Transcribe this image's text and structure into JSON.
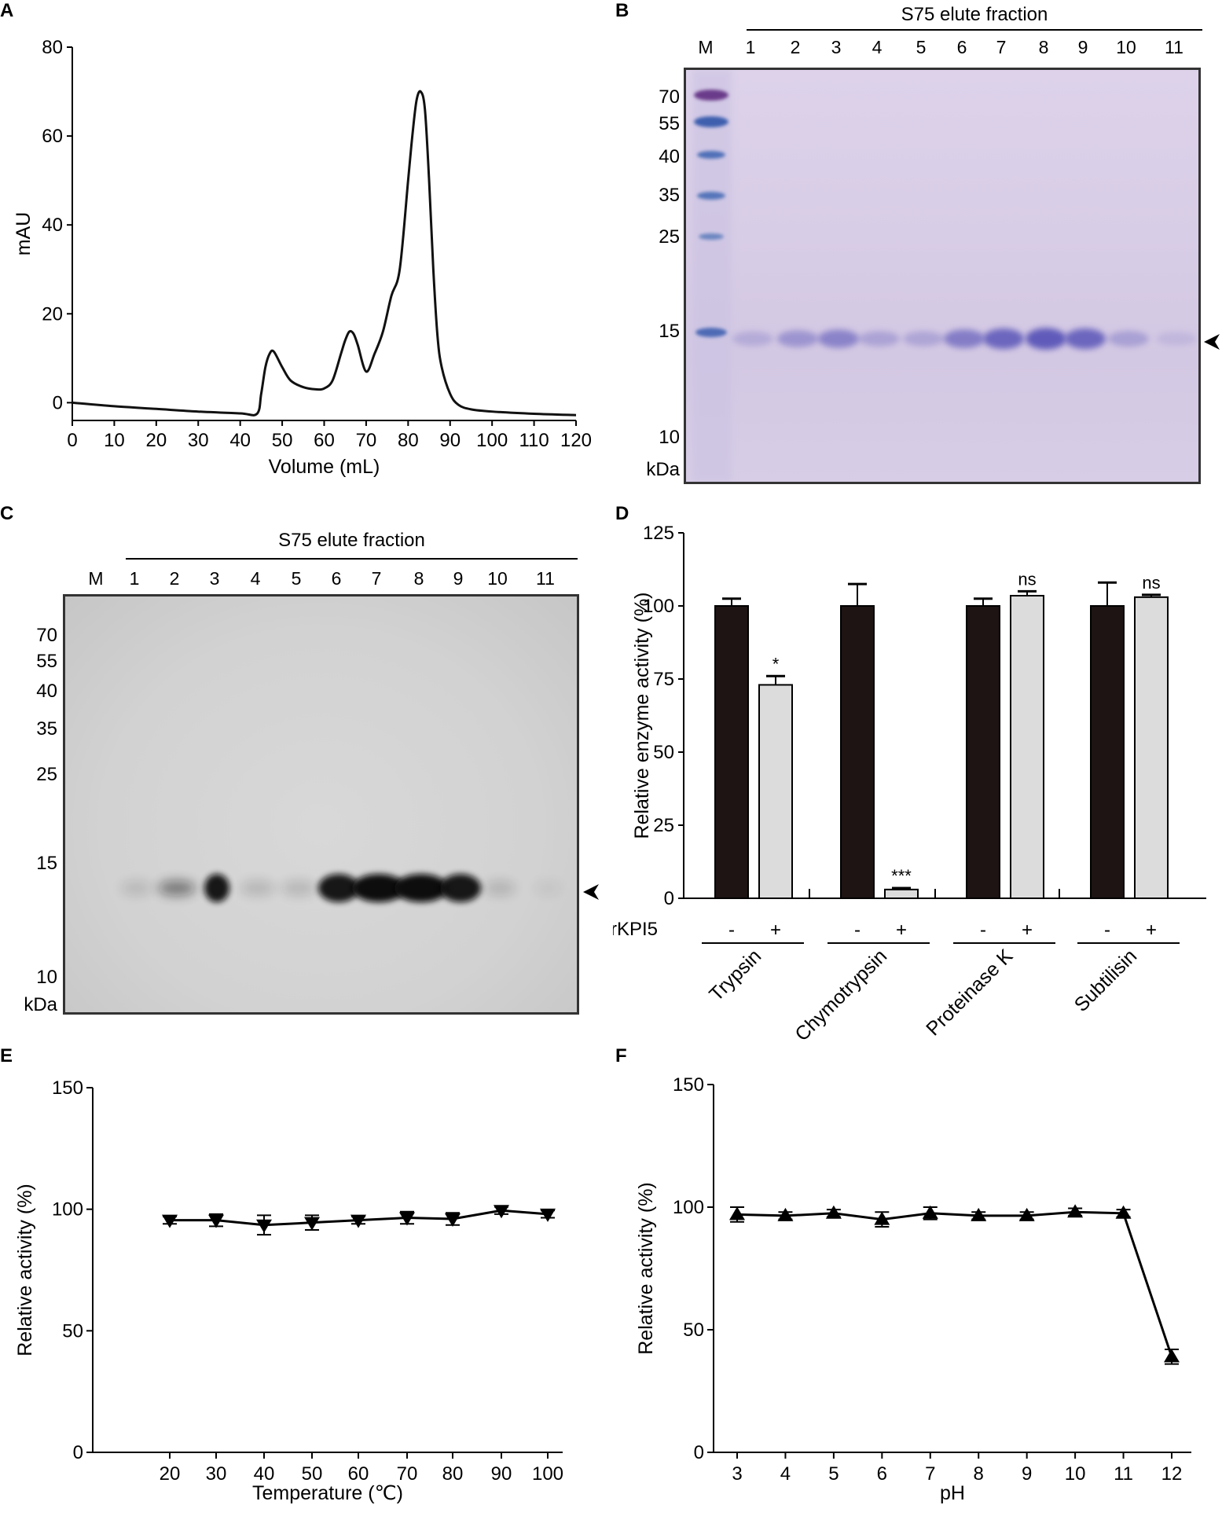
{
  "panels": {
    "A": {
      "label": "A"
    },
    "B": {
      "label": "B",
      "header": "S75 elute fraction",
      "lanes": [
        "M",
        "1",
        "2",
        "3",
        "4",
        "5",
        "6",
        "7",
        "8",
        "9",
        "10",
        "11"
      ],
      "markers": [
        "70",
        "55",
        "40",
        "35",
        "25",
        "15",
        "10"
      ],
      "unit": "kDa"
    },
    "C": {
      "label": "C",
      "header": "S75 elute fraction",
      "lanes": [
        "M",
        "1",
        "2",
        "3",
        "4",
        "5",
        "6",
        "7",
        "8",
        "9",
        "10",
        "11"
      ],
      "markers": [
        "70",
        "55",
        "40",
        "35",
        "25",
        "15",
        "10"
      ],
      "unit": "kDa"
    },
    "D": {
      "label": "D"
    },
    "E": {
      "label": "E"
    },
    "F": {
      "label": "F"
    }
  },
  "chart_data": [
    {
      "id": "A",
      "type": "line",
      "xlabel": "Volume (mL)",
      "ylabel": "mAU",
      "xlim": [
        0,
        120
      ],
      "ylim": [
        -4,
        80
      ],
      "xticks": [
        "0",
        "10",
        "20",
        "30",
        "40",
        "50",
        "60",
        "70",
        "80",
        "90",
        "100",
        "110",
        "120"
      ],
      "yticks": [
        "0",
        "20",
        "40",
        "60",
        "80"
      ],
      "x": [
        0,
        10,
        20,
        30,
        40,
        44,
        45,
        46,
        47,
        48,
        50,
        52,
        55,
        58,
        60,
        62,
        64,
        65,
        66,
        67,
        68,
        70,
        72,
        74,
        76,
        78,
        80,
        81,
        82,
        83,
        84,
        85,
        86,
        87,
        88,
        90,
        92,
        95,
        100,
        110,
        120
      ],
      "y": [
        0,
        -0.8,
        -1.4,
        -2,
        -2.4,
        -2.5,
        2,
        8,
        11,
        11.5,
        8,
        5,
        3.5,
        3,
        3.2,
        5,
        11,
        14,
        16,
        15.5,
        13,
        7,
        11,
        16,
        24,
        30,
        50,
        60,
        68,
        70,
        66,
        50,
        30,
        15,
        8,
        2,
        -0.5,
        -1.5,
        -2,
        -2.5,
        -2.8
      ]
    },
    {
      "id": "D",
      "type": "bar",
      "ylabel": "Relative enzyme activity (%)",
      "ylim": [
        0,
        125
      ],
      "yticks": [
        "0",
        "25",
        "50",
        "75",
        "100",
        "125"
      ],
      "categories": [
        "Trypsin",
        "Chymotrypsin",
        "Proteinase K",
        "Subtilisin"
      ],
      "factor_label": "rKPI5",
      "conditions": [
        "-",
        "+"
      ],
      "series": [
        {
          "values": [
            100,
            100,
            100,
            100
          ],
          "errors": [
            2.5,
            7.5,
            2.5,
            8
          ],
          "color": "#1e1414"
        },
        {
          "values": [
            73,
            3,
            103.5,
            103
          ],
          "errors": [
            3,
            0.5,
            1.5,
            0.8
          ],
          "color": "#dcdcdc"
        }
      ],
      "significance": [
        "*",
        "***",
        "ns",
        "ns"
      ]
    },
    {
      "id": "E",
      "type": "line",
      "xlabel": "Temperature (℃)",
      "ylabel": "Relative activity (%)",
      "ylim": [
        0,
        150
      ],
      "yticks": [
        "0",
        "50",
        "100",
        "150"
      ],
      "xticks": [
        "20",
        "30",
        "40",
        "50",
        "60",
        "70",
        "80",
        "90",
        "100"
      ],
      "x": [
        20,
        30,
        40,
        50,
        60,
        70,
        80,
        90,
        100
      ],
      "y": [
        95.5,
        95.5,
        93.5,
        94.5,
        95.5,
        96.5,
        96,
        99.5,
        98
      ],
      "errors": [
        1.5,
        2.5,
        4,
        3,
        1.5,
        2.5,
        2.5,
        1.5,
        1.5
      ],
      "marker": "triangle-down"
    },
    {
      "id": "F",
      "type": "line",
      "xlabel": "pH",
      "ylabel": "Relative activity (%)",
      "ylim": [
        0,
        150
      ],
      "yticks": [
        "0",
        "50",
        "100",
        "150"
      ],
      "xticks": [
        "3",
        "4",
        "5",
        "6",
        "7",
        "8",
        "9",
        "10",
        "11",
        "12"
      ],
      "x": [
        3,
        4,
        5,
        6,
        7,
        8,
        9,
        10,
        11,
        12
      ],
      "y": [
        97,
        96.5,
        97.5,
        95,
        97.5,
        96.5,
        96.5,
        98,
        97.5,
        39
      ],
      "errors": [
        3,
        1.5,
        1.5,
        3,
        2.5,
        1.5,
        1.5,
        1.5,
        1.5,
        3
      ],
      "marker": "triangle-up"
    }
  ]
}
